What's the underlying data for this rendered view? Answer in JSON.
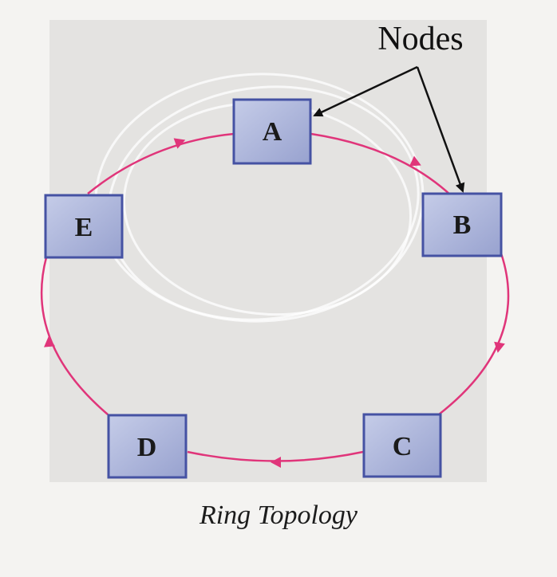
{
  "callout": {
    "label": "Nodes"
  },
  "nodes": [
    {
      "id": "A",
      "label": "A"
    },
    {
      "id": "B",
      "label": "B"
    },
    {
      "id": "C",
      "label": "C"
    },
    {
      "id": "D",
      "label": "D"
    },
    {
      "id": "E",
      "label": "E"
    }
  ],
  "caption": "Ring Topology",
  "colors": {
    "ring": "#e0357a",
    "node_fill": "#a9b2d6",
    "node_border": "#4552a3",
    "panel": "#e4e3e1",
    "background": "#f4f3f1",
    "arrow": "#111111"
  }
}
